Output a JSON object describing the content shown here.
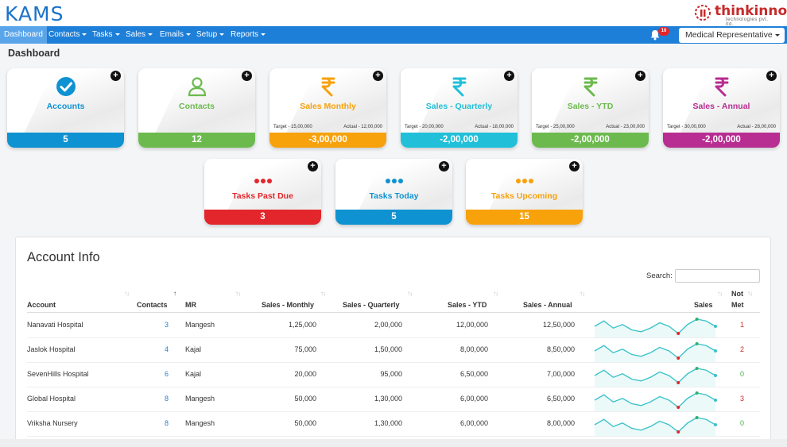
{
  "app": {
    "logo": "KAMS",
    "brand_name": "thinkinno",
    "brand_sub": "technologies pvt. ltd."
  },
  "nav": {
    "items": [
      {
        "label": "Dashboard",
        "caret": false,
        "active": true
      },
      {
        "label": "Contacts",
        "caret": true
      },
      {
        "label": "Tasks",
        "caret": true
      },
      {
        "label": "Sales",
        "caret": true
      },
      {
        "label": "Emails",
        "caret": true
      },
      {
        "label": "Setup",
        "caret": true
      },
      {
        "label": "Reports",
        "caret": true
      }
    ],
    "notification_count": "10",
    "role": "Medical Representative"
  },
  "page_title": "Dashboard",
  "cards": [
    {
      "key": "accounts",
      "label": "Accounts",
      "value": "5",
      "color": "#0f92d1",
      "icon": "check-circle-icon"
    },
    {
      "key": "contacts",
      "label": "Contacts",
      "value": "12",
      "color": "#6cba4e",
      "icon": "person-icon"
    },
    {
      "key": "sales-monthly",
      "label": "Sales Monthly",
      "value": "-3,00,000",
      "color": "#f7a10b",
      "icon": "rupee-icon",
      "target": "Target - 15,00,000",
      "actual": "Actual - 12,00,000"
    },
    {
      "key": "sales-quarterly",
      "label": "Sales - Quarterly",
      "value": "-2,00,000",
      "color": "#21bfd8",
      "icon": "rupee-icon",
      "target": "Target - 20,00,000",
      "actual": "Actual - 18,00,000"
    },
    {
      "key": "sales-ytd",
      "label": "Sales - YTD",
      "value": "-2,00,000",
      "color": "#6cba4e",
      "icon": "rupee-icon",
      "target": "Target - 25,00,000",
      "actual": "Actual - 23,00,000"
    },
    {
      "key": "sales-annual",
      "label": "Sales - Annual",
      "value": "-2,00,000",
      "color": "#b82d91",
      "icon": "rupee-icon",
      "target": "Target - 30,00,000",
      "actual": "Actual - 28,00,000"
    }
  ],
  "tasks": [
    {
      "key": "past-due",
      "label": "Tasks Past Due",
      "value": "3",
      "color": "#e3262b"
    },
    {
      "key": "today",
      "label": "Tasks Today",
      "value": "5",
      "color": "#0f92d1"
    },
    {
      "key": "upcoming",
      "label": "Tasks Upcoming",
      "value": "15",
      "color": "#f7a10b"
    }
  ],
  "account_info": {
    "title": "Account Info",
    "search_label": "Search:",
    "columns": [
      "Account",
      "Contacts",
      "MR",
      "Sales - Monthly",
      "Sales - Quarterly",
      "Sales - YTD",
      "Sales - Annual",
      "Sales",
      "Not",
      "Met"
    ],
    "rows": [
      {
        "account": "Nanavati Hospital",
        "contacts": "3",
        "mr": "Mangesh",
        "monthly": "1,25,000",
        "quarterly": "2,00,000",
        "ytd": "12,00,000",
        "annual": "12,50,000",
        "not_met": "1",
        "not_met_status": "red"
      },
      {
        "account": "Jaslok Hospital",
        "contacts": "4",
        "mr": "Kajal",
        "monthly": "75,000",
        "quarterly": "1,50,000",
        "ytd": "8,00,000",
        "annual": "8,50,000",
        "not_met": "2",
        "not_met_status": "red"
      },
      {
        "account": "SevenHills Hospital",
        "contacts": "6",
        "mr": "Kajal",
        "monthly": "20,000",
        "quarterly": "95,000",
        "ytd": "6,50,000",
        "annual": "7,00,000",
        "not_met": "0",
        "not_met_status": "green"
      },
      {
        "account": "Global Hospital",
        "contacts": "8",
        "mr": "Mangesh",
        "monthly": "50,000",
        "quarterly": "1,30,000",
        "ytd": "6,00,000",
        "annual": "6,50,000",
        "not_met": "3",
        "not_met_status": "red"
      },
      {
        "account": "Vriksha Nursery",
        "contacts": "8",
        "mr": "Mangesh",
        "monthly": "50,000",
        "quarterly": "1,30,000",
        "ytd": "6,00,000",
        "annual": "8,00,000",
        "not_met": "0",
        "not_met_status": "green"
      }
    ],
    "sparkline": {
      "values": [
        5,
        8,
        4,
        6,
        3,
        2,
        4,
        7,
        5,
        1,
        6,
        9,
        8,
        5
      ],
      "line_color": "#3cc3c9",
      "high_color": "#2bb36c",
      "low_color": "#e3262b"
    }
  }
}
